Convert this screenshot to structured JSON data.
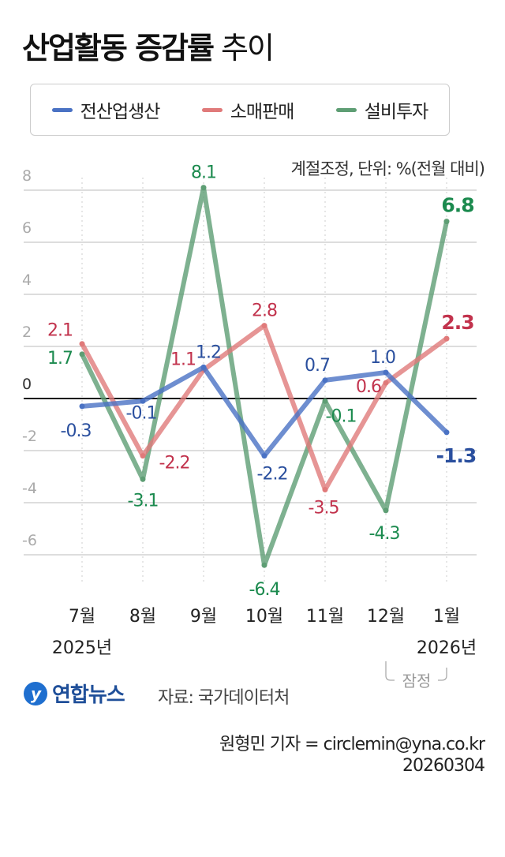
{
  "title_bold": "산업활동 증감률",
  "title_light": "추이",
  "unit_note": "계절조정, 단위: %(전월 대비)",
  "colors": {
    "전산업생산": "#4a72c4",
    "소매판매": "#e07a7a",
    "설비투자": "#5e9e74"
  },
  "label_colors": {
    "전산업생산": "#2a4f9e",
    "소매판매": "#c2334d",
    "설비투자": "#1b8a4e"
  },
  "chart_data": {
    "type": "line",
    "categories": [
      "7월",
      "8월",
      "9월",
      "10월",
      "11월",
      "12월",
      "1월"
    ],
    "year_labels": [
      "2025년",
      "2026년"
    ],
    "provisional_label": "잠정",
    "ylim": [
      -8,
      9
    ],
    "yticks": [
      8,
      6,
      4,
      2,
      0,
      -2,
      -4,
      -6
    ],
    "grid": true,
    "legend": "top",
    "series": [
      {
        "name": "전산업생산",
        "values": [
          -0.3,
          -0.1,
          1.2,
          -2.2,
          0.7,
          1.0,
          -1.3
        ]
      },
      {
        "name": "소매판매",
        "values": [
          2.1,
          -2.2,
          1.1,
          2.8,
          -3.5,
          0.6,
          2.3
        ]
      },
      {
        "name": "설비투자",
        "values": [
          1.7,
          -3.1,
          8.1,
          -6.4,
          -0.1,
          -4.3,
          6.8
        ]
      }
    ]
  },
  "footer": {
    "logo": "연합뉴스",
    "source": "자료: 국가데이터처",
    "reporter": "원형민 기자 = circlemin@yna.co.kr",
    "date": "20260304"
  }
}
